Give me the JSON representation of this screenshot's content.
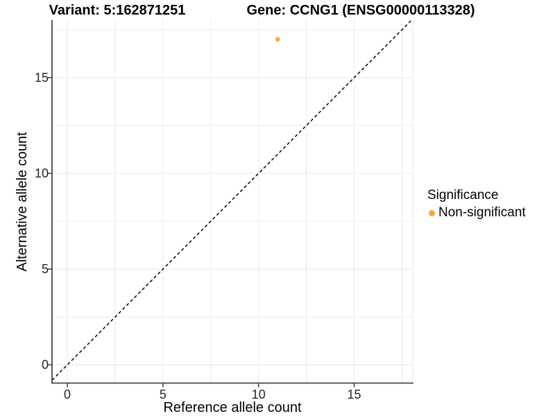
{
  "header": {
    "variant_title": "Variant: 5:162871251",
    "gene_title": "Gene: CCNG1 (ENSG00000113328)"
  },
  "legend": {
    "title": "Significance",
    "items": [
      {
        "label": "Non-significant",
        "color": "#F9A342"
      }
    ]
  },
  "chart_data": {
    "type": "scatter",
    "title_left": "Variant: 5:162871251",
    "title_right": "Gene: CCNG1 (ENSG00000113328)",
    "xlabel": "Reference allele count",
    "ylabel": "Alternative allele count",
    "x_ticks": [
      0,
      5,
      10,
      15
    ],
    "y_ticks": [
      0,
      5,
      10,
      15
    ],
    "minor_x": [
      2.5,
      7.5,
      12.5,
      17.5
    ],
    "minor_y": [
      2.5,
      7.5,
      12.5,
      17.5
    ],
    "xlim": [
      -0.8,
      18.1
    ],
    "ylim": [
      -0.95,
      18.0
    ],
    "grid": "light major+minor, white background",
    "axis_lines": "dark left and bottom axis lines with outward ticks",
    "reference_line": {
      "type": "identity",
      "equation": "y = x",
      "style": "dashed",
      "color": "#000000"
    },
    "series": [
      {
        "name": "Non-significant",
        "color": "#F9A342",
        "points": [
          {
            "x": 11,
            "y": 17
          }
        ]
      }
    ],
    "legend_title": "Significance",
    "legend_position": "right",
    "colors": {
      "grid": "#ECECEC",
      "axis": "#464646",
      "tick_text": "#262626",
      "point": "#F9A342"
    }
  }
}
